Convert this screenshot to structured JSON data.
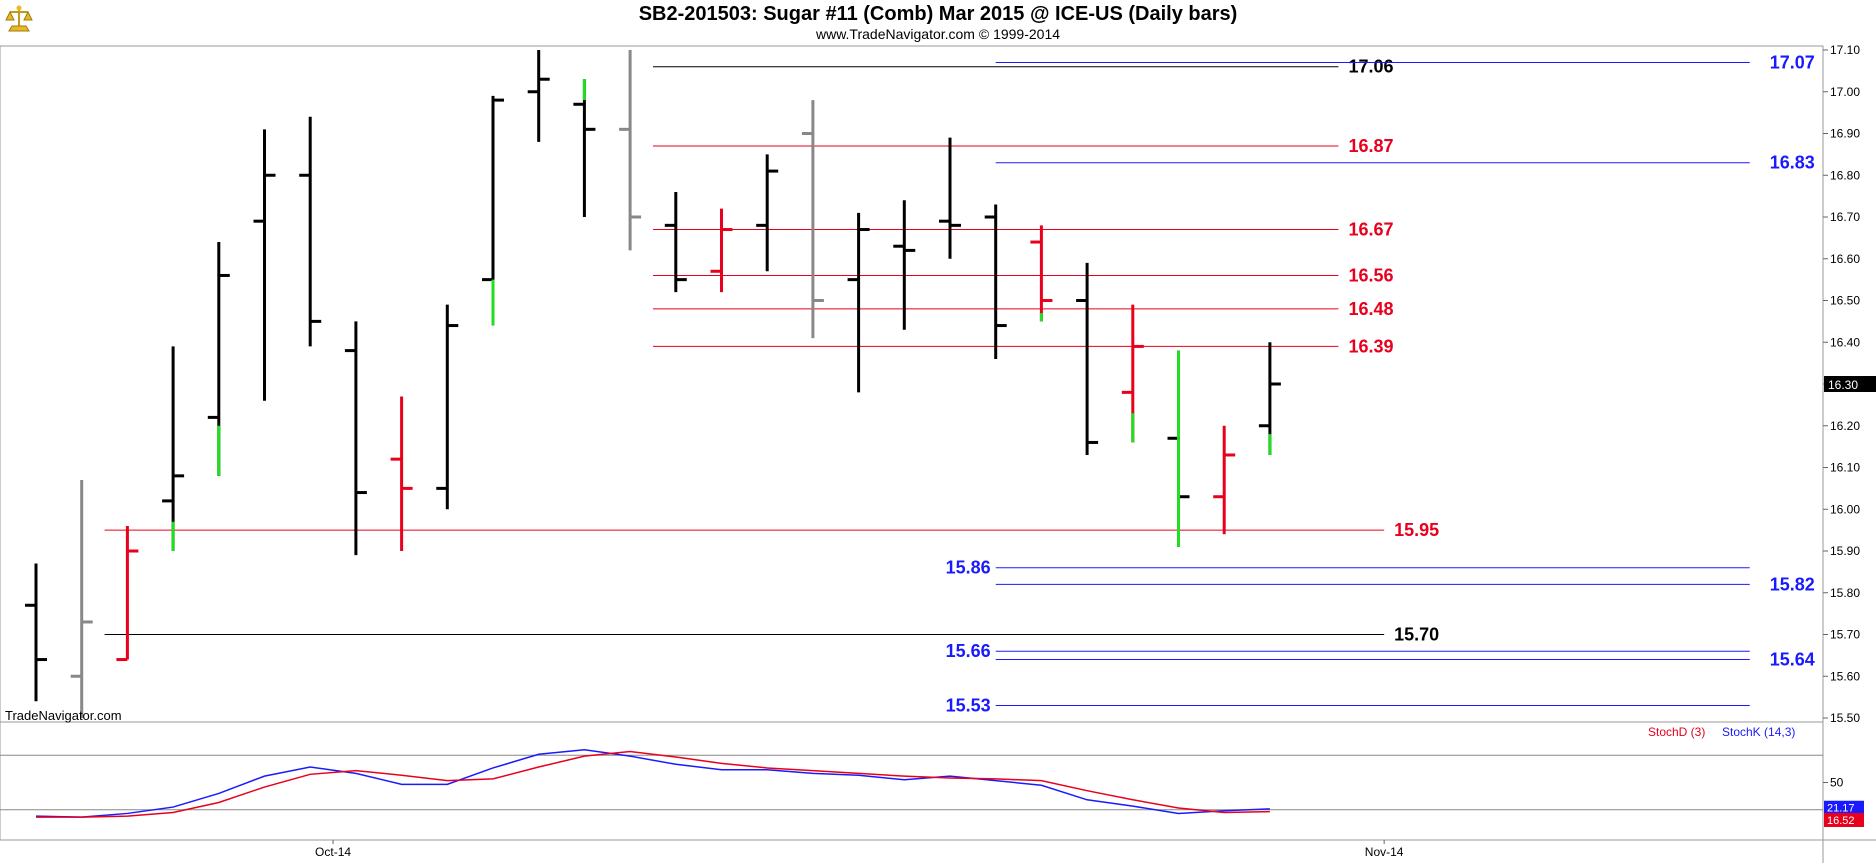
{
  "header": {
    "title": "SB2-201503:  Sugar #11 (Comb) Mar 2015 @ ICE-US  (Daily bars)",
    "subtitle": "www.TradeNavigator.com © 1999-2014",
    "watermark": "TradeNavigator.com"
  },
  "colors": {
    "up_bar": "#000000",
    "down_bar": "#e8001c",
    "gray_bar": "#888888",
    "green_tick": "#22dd22",
    "red_line": "#e8001c",
    "blue_line": "#1a1aff",
    "black_line": "#000000",
    "stoch_d": "#e8001c",
    "stoch_k": "#1a1aff"
  },
  "chart_data": [
    {
      "type": "ohlc",
      "ylim": [
        15.5,
        17.1
      ],
      "y_ticks": [
        "17.10",
        "17.00",
        "16.90",
        "16.80",
        "16.70",
        "16.60",
        "16.50",
        "16.40",
        "16.30",
        "16.20",
        "16.10",
        "16.00",
        "15.90",
        "15.80",
        "15.70",
        "15.60",
        "15.50"
      ],
      "x_labels": [
        {
          "label": "Oct-14",
          "index": 6.5
        },
        {
          "label": "Nov-14",
          "index": 29.5
        }
      ],
      "last_price": "16.30",
      "bars": [
        {
          "open": 15.77,
          "high": 15.87,
          "low": 15.54,
          "close": 15.64,
          "color": "black"
        },
        {
          "open": 15.6,
          "high": 16.07,
          "low": 15.5,
          "close": 15.73,
          "color": "gray"
        },
        {
          "open": 15.64,
          "high": 15.96,
          "low": 15.64,
          "close": 15.9,
          "color": "red"
        },
        {
          "open": 16.02,
          "high": 16.39,
          "low": 15.9,
          "close": 16.08,
          "color": "black",
          "green_low": 15.97
        },
        {
          "open": 16.22,
          "high": 16.64,
          "low": 16.08,
          "close": 16.56,
          "color": "black",
          "green_low": 16.2
        },
        {
          "open": 16.69,
          "high": 16.91,
          "low": 16.26,
          "close": 16.8,
          "color": "black"
        },
        {
          "open": 16.8,
          "high": 16.94,
          "low": 16.39,
          "close": 16.45,
          "color": "black"
        },
        {
          "open": 16.38,
          "high": 16.45,
          "low": 15.89,
          "close": 16.04,
          "color": "black"
        },
        {
          "open": 16.12,
          "high": 16.27,
          "low": 15.9,
          "close": 16.05,
          "color": "red"
        },
        {
          "open": 16.05,
          "high": 16.49,
          "low": 16.0,
          "close": 16.44,
          "color": "black"
        },
        {
          "open": 16.55,
          "high": 16.99,
          "low": 16.44,
          "close": 16.98,
          "color": "black",
          "green_low": 16.55
        },
        {
          "open": 17.0,
          "high": 17.1,
          "low": 16.88,
          "close": 17.03,
          "color": "black"
        },
        {
          "open": 16.97,
          "high": 17.03,
          "low": 16.7,
          "close": 16.91,
          "color": "black",
          "green_high": 16.98
        },
        {
          "open": 16.91,
          "high": 17.1,
          "low": 16.62,
          "close": 16.7,
          "color": "gray"
        },
        {
          "open": 16.68,
          "high": 16.76,
          "low": 16.52,
          "close": 16.55,
          "color": "black"
        },
        {
          "open": 16.57,
          "high": 16.72,
          "low": 16.52,
          "close": 16.67,
          "color": "red"
        },
        {
          "open": 16.68,
          "high": 16.85,
          "low": 16.57,
          "close": 16.81,
          "color": "black"
        },
        {
          "open": 16.9,
          "high": 16.98,
          "low": 16.41,
          "close": 16.5,
          "color": "gray"
        },
        {
          "open": 16.55,
          "high": 16.71,
          "low": 16.28,
          "close": 16.67,
          "color": "black"
        },
        {
          "open": 16.63,
          "high": 16.74,
          "low": 16.43,
          "close": 16.62,
          "color": "black"
        },
        {
          "open": 16.69,
          "high": 16.89,
          "low": 16.6,
          "close": 16.68,
          "color": "black"
        },
        {
          "open": 16.7,
          "high": 16.73,
          "low": 16.36,
          "close": 16.44,
          "color": "black"
        },
        {
          "open": 16.64,
          "high": 16.68,
          "low": 16.45,
          "close": 16.5,
          "color": "red",
          "green_low": 16.47
        },
        {
          "open": 16.5,
          "high": 16.59,
          "low": 16.13,
          "close": 16.16,
          "color": "black"
        },
        {
          "open": 16.28,
          "high": 16.49,
          "low": 16.16,
          "close": 16.39,
          "color": "red",
          "green_low": 16.23
        },
        {
          "open": 16.17,
          "high": 16.38,
          "low": 15.91,
          "close": 16.03,
          "color": "black",
          "green_high": 16.38,
          "green_low": 16.17
        },
        {
          "open": 16.03,
          "high": 16.2,
          "low": 15.94,
          "close": 16.13,
          "color": "red"
        },
        {
          "open": 16.2,
          "high": 16.4,
          "low": 16.13,
          "close": 16.3,
          "color": "black",
          "green_low": 16.18
        }
      ],
      "levels": [
        {
          "value": 17.06,
          "label": "17.06",
          "color": "black",
          "from": 13.5,
          "to": 28.5,
          "label_pos": "right"
        },
        {
          "value": 17.07,
          "label": "17.07",
          "color": "blue",
          "from": 21.0,
          "to": 37.5,
          "label_pos": "right"
        },
        {
          "value": 16.87,
          "label": "16.87",
          "color": "red",
          "from": 13.5,
          "to": 28.5,
          "label_pos": "right"
        },
        {
          "value": 16.83,
          "label": "16.83",
          "color": "blue",
          "from": 21.0,
          "to": 37.5,
          "label_pos": "right"
        },
        {
          "value": 16.67,
          "label": "16.67",
          "color": "red",
          "from": 13.5,
          "to": 28.5,
          "label_pos": "right"
        },
        {
          "value": 16.56,
          "label": "16.56",
          "color": "red",
          "from": 13.5,
          "to": 28.5,
          "label_pos": "right"
        },
        {
          "value": 16.48,
          "label": "16.48",
          "color": "red",
          "from": 13.5,
          "to": 28.5,
          "label_pos": "right"
        },
        {
          "value": 16.39,
          "label": "16.39",
          "color": "red",
          "from": 13.5,
          "to": 28.5,
          "label_pos": "right"
        },
        {
          "value": 15.95,
          "label": "15.95",
          "color": "red",
          "from": 1.5,
          "to": 29.5,
          "label_pos": "right"
        },
        {
          "value": 15.86,
          "label": "15.86",
          "color": "blue",
          "from": 21.0,
          "to": 37.5,
          "label_pos": "left"
        },
        {
          "value": 15.82,
          "label": "15.82",
          "color": "blue",
          "from": 21.0,
          "to": 37.5,
          "label_pos": "right"
        },
        {
          "value": 15.7,
          "label": "15.70",
          "color": "black",
          "from": 1.5,
          "to": 29.5,
          "label_pos": "right"
        },
        {
          "value": 15.66,
          "label": "15.66",
          "color": "blue",
          "from": 21.0,
          "to": 37.5,
          "label_pos": "left"
        },
        {
          "value": 15.64,
          "label": "15.64",
          "color": "blue",
          "from": 21.0,
          "to": 37.5,
          "label_pos": "right"
        },
        {
          "value": 15.53,
          "label": "15.53",
          "color": "blue",
          "from": 21.0,
          "to": 37.5,
          "label_pos": "left"
        }
      ]
    },
    {
      "type": "line",
      "ylim": [
        0,
        100
      ],
      "y_tick": "50",
      "reference_lines": [
        80,
        20
      ],
      "legend": [
        {
          "name": "StochD (3)",
          "color": "red"
        },
        {
          "name": "StochK (14,3)",
          "color": "blue"
        }
      ],
      "last_values": {
        "k": "21.17",
        "d": "16.52"
      },
      "series": [
        {
          "name": "StochK (14,3)",
          "color": "blue",
          "values": [
            13,
            12,
            16,
            23,
            38,
            57,
            67,
            60,
            48,
            48,
            66,
            81,
            86,
            79,
            70,
            64,
            64,
            60,
            58,
            53,
            57,
            52,
            47,
            31,
            24,
            16,
            19,
            21
          ]
        },
        {
          "name": "StochD (3)",
          "color": "red",
          "values": [
            12,
            12,
            13,
            17,
            28,
            45,
            59,
            63,
            58,
            52,
            54,
            67,
            79,
            84,
            78,
            71,
            66,
            63,
            60,
            57,
            55,
            54,
            52,
            41,
            31,
            22,
            17,
            18
          ]
        }
      ]
    }
  ]
}
